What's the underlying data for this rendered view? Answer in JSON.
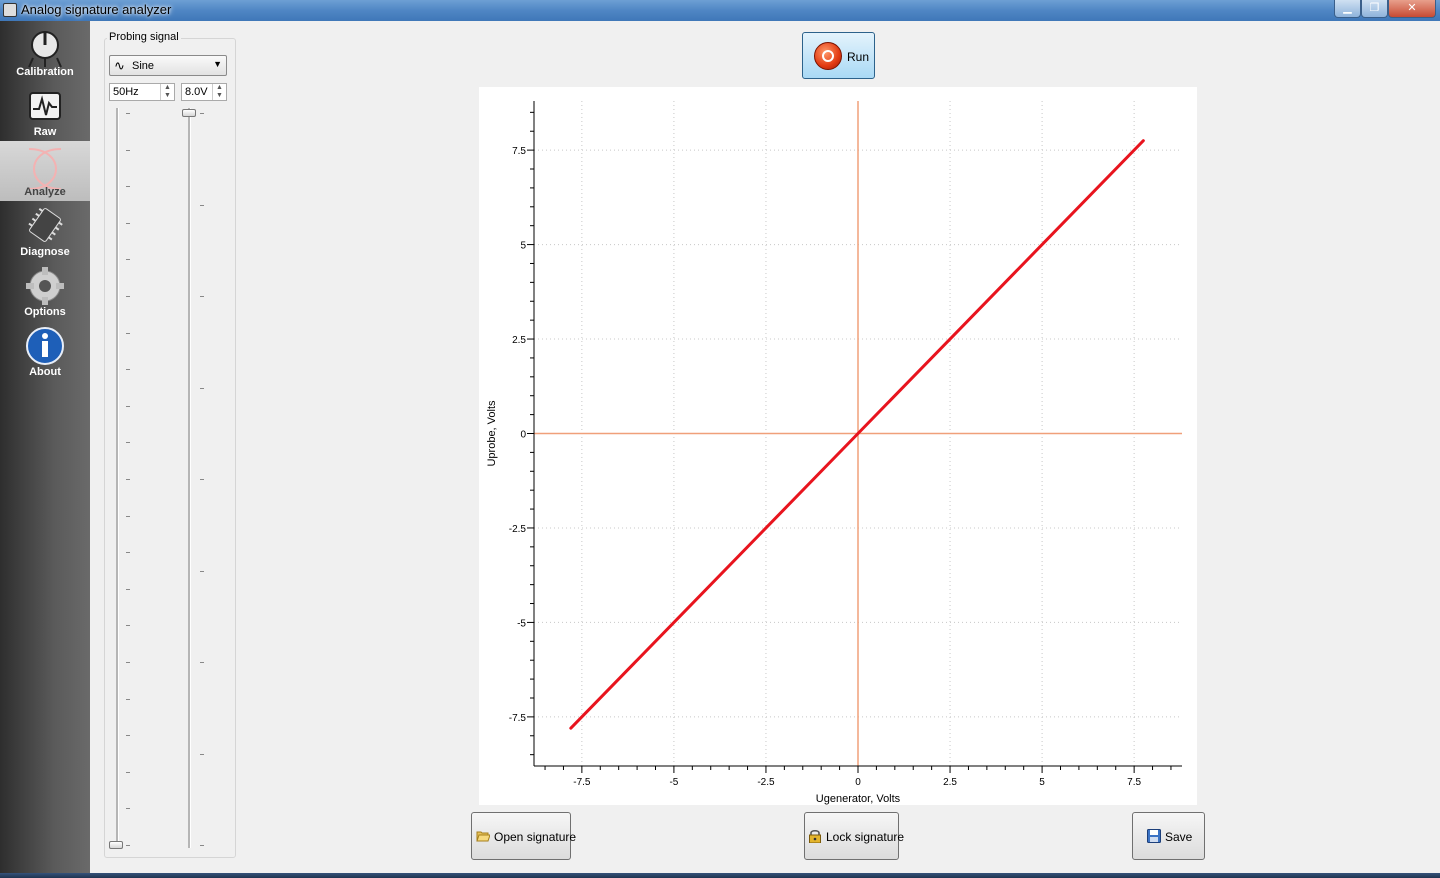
{
  "window": {
    "title": "Analog signature analyzer",
    "minimize": "",
    "maximize": "",
    "close": "✕"
  },
  "sidebar": {
    "items": [
      {
        "label": "Calibration",
        "icon": "calibration-icon"
      },
      {
        "label": "Raw",
        "icon": "raw-signal-icon"
      },
      {
        "label": "Analyze",
        "icon": "analyze-icon",
        "active": true
      },
      {
        "label": "Diagnose",
        "icon": "chip-icon"
      },
      {
        "label": "Options",
        "icon": "gear-icon"
      },
      {
        "label": "About",
        "icon": "info-icon"
      }
    ]
  },
  "probing": {
    "title": "Probing signal",
    "waveform": {
      "selected": "Sine",
      "icon": "sine-wave-icon"
    },
    "frequency": "50Hz",
    "voltage": "8.0V",
    "frequency_slider_level": 0.0,
    "voltage_slider_level": 1.0
  },
  "toolbar": {
    "run_label": "Run"
  },
  "actions": {
    "open_label": "Open signature",
    "lock_label": "Lock signature",
    "save_label": "Save"
  },
  "colors": {
    "trace": "#e8141e",
    "origin_axes": "#f0a07a",
    "grid": "#c8c8c8"
  },
  "chart_data": {
    "type": "line",
    "title": "",
    "xlabel": "Ugenerator, Volts",
    "ylabel": "Uprobe, Volts",
    "xlim": [
      -8.8,
      8.8
    ],
    "ylim": [
      -8.8,
      8.8
    ],
    "xticks": [
      -7.5,
      -5,
      -2.5,
      0,
      2.5,
      5,
      7.5
    ],
    "yticks": [
      -7.5,
      -5,
      -2.5,
      0,
      2.5,
      5,
      7.5
    ],
    "xtick_labels": [
      "-7.5",
      "-5",
      "-2.5",
      "0",
      "2.5",
      "5",
      "7.5"
    ],
    "ytick_labels": [
      "-7.5",
      "-5",
      "-2.5",
      "0",
      "2.5",
      "5",
      "7.5"
    ],
    "grid": true,
    "series": [
      {
        "x": [
          -7.8,
          -5,
          -2.5,
          0,
          2.5,
          5,
          7.75
        ],
        "y": [
          -7.8,
          -5,
          -2.5,
          0,
          2.5,
          5,
          7.75
        ]
      }
    ]
  }
}
